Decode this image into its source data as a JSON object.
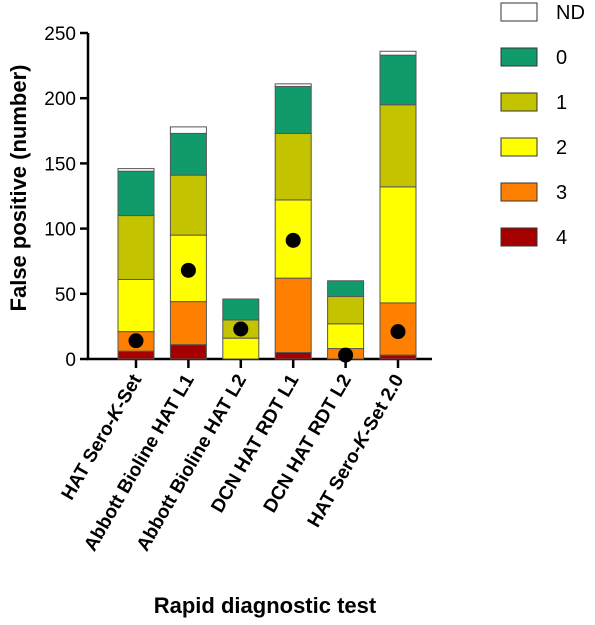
{
  "chart_data": {
    "type": "bar",
    "stacked": true,
    "xlabel": "Rapid diagnostic test",
    "ylabel": "False positive (number)",
    "ylim": [
      0,
      250
    ],
    "yticks": [
      "0",
      "50",
      "100",
      "150",
      "200",
      "250"
    ],
    "categories": [
      "HAT Sero-K-Set",
      "Abbott Bioline HAT L1",
      "Abbott Bioline HAT L2",
      "DCN HAT RDT L1",
      "DCN HAT RDT L2",
      "HAT Sero-K-Set 2.0"
    ],
    "category_labels": [
      {
        "parts": [
          "HAT Sero-",
          "K",
          "-Set"
        ],
        "italic": [
          false,
          true,
          false
        ]
      },
      {
        "parts": [
          "Abbott Bioline HAT L1"
        ],
        "italic": [
          false
        ]
      },
      {
        "parts": [
          "Abbott Bioline HAT L2"
        ],
        "italic": [
          false
        ]
      },
      {
        "parts": [
          "DCN HAT RDT L1"
        ],
        "italic": [
          false
        ]
      },
      {
        "parts": [
          "DCN HAT RDT L2"
        ],
        "italic": [
          false
        ]
      },
      {
        "parts": [
          "HAT Sero-",
          "K",
          "-Set 2.0"
        ],
        "italic": [
          false,
          true,
          false
        ]
      }
    ],
    "series": [
      {
        "name": "4",
        "color": "#a50000",
        "values": [
          6,
          11,
          0,
          5,
          0,
          3
        ]
      },
      {
        "name": "3",
        "color": "#ff8000",
        "values": [
          15,
          33,
          0,
          57,
          8,
          40
        ]
      },
      {
        "name": "2",
        "color": "#ffff00",
        "values": [
          40,
          51,
          16,
          60,
          19,
          89
        ]
      },
      {
        "name": "1",
        "color": "#c3c300",
        "values": [
          49,
          46,
          14,
          51,
          21,
          63
        ]
      },
      {
        "name": "0",
        "color": "#129b6a",
        "values": [
          34,
          32,
          16,
          36,
          12,
          38
        ]
      },
      {
        "name": "ND",
        "color": "#ffffff",
        "values": [
          2,
          5,
          0,
          2,
          0,
          3
        ]
      }
    ],
    "points": {
      "color": "#000000",
      "values": [
        14,
        68,
        23,
        91,
        3,
        21
      ]
    },
    "legend": {
      "position": "top-right",
      "order": [
        "ND",
        "0",
        "1",
        "2",
        "3",
        "4"
      ]
    }
  }
}
